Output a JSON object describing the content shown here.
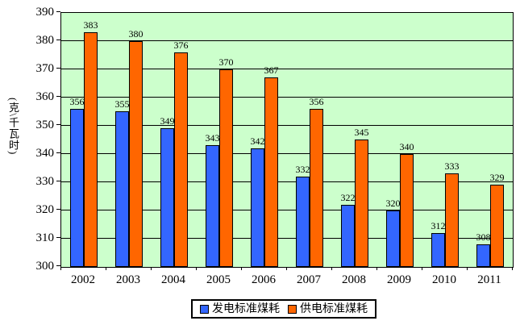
{
  "chart_data": {
    "type": "bar",
    "title": "",
    "ylabel": "(克\\千瓦时)",
    "xlabel": "",
    "categories": [
      "2002",
      "2003",
      "2004",
      "2005",
      "2006",
      "2007",
      "2008",
      "2009",
      "2010",
      "2011"
    ],
    "series": [
      {
        "name": "发电标准煤耗",
        "color": "#3366FF",
        "values": [
          356,
          355,
          349,
          343,
          342,
          332,
          322,
          320,
          312,
          308
        ]
      },
      {
        "name": "供电标准煤耗",
        "color": "#FF6600",
        "values": [
          383,
          380,
          376,
          370,
          367,
          356,
          345,
          340,
          333,
          329
        ]
      }
    ],
    "ylim": [
      300,
      390
    ],
    "ytick_step": 10,
    "grid": true,
    "legend_position": "bottom",
    "plot_bg": "#CCFFCC",
    "bar_border_color": "#000000",
    "data_labels": true
  }
}
